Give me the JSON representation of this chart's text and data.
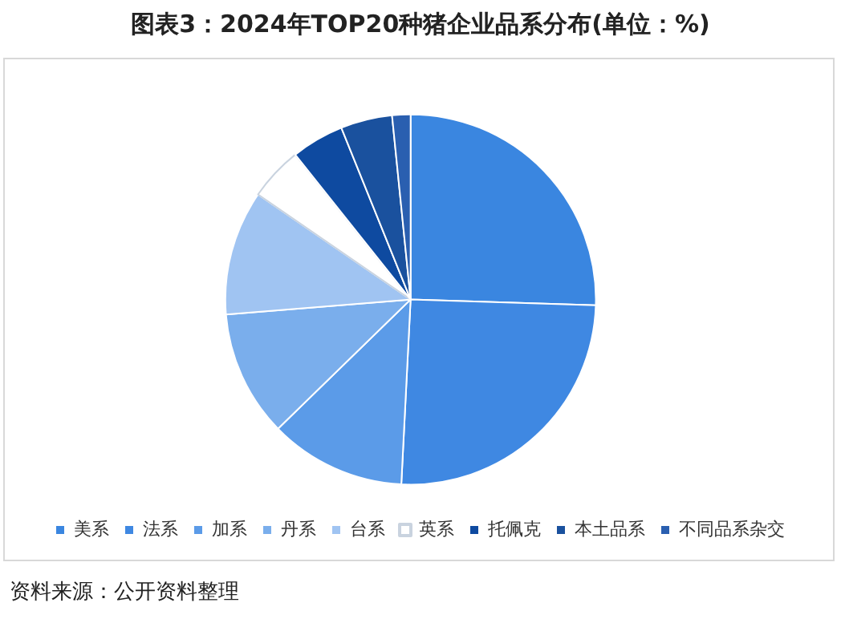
{
  "chart_data": {
    "type": "pie",
    "title": "图表3：2024年TOP20种猪企业品系分布(单位：%)",
    "categories": [
      "美系",
      "法系",
      "加系",
      "丹系",
      "台系",
      "英系",
      "托佩克",
      "本土品系",
      "不同品系杂交"
    ],
    "values": [
      25.5,
      25.3,
      11.9,
      11.0,
      10.9,
      4.7,
      4.6,
      4.5,
      1.6
    ],
    "colors": [
      "#3a86e0",
      "#3f88e2",
      "#5b9be8",
      "#7aaeec",
      "#a0c4f2",
      "#ffffff",
      "#0e4aa0",
      "#1a519e",
      "#2a5fb0"
    ],
    "legend": "bottom",
    "annotations": [
      "资料来源：公开资料整理"
    ]
  }
}
